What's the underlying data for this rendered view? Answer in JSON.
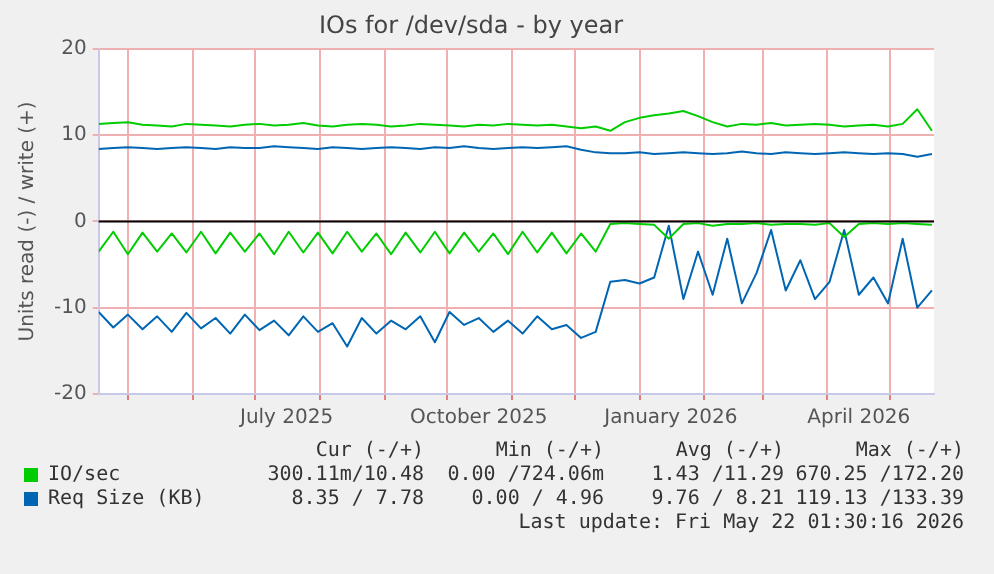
{
  "chart_data": {
    "type": "line",
    "title": "IOs for /dev/sda - by year",
    "ylabel": "Units read (-) / write (+)",
    "x": [
      "2025-04-17",
      "2025-04-24",
      "2025-05-01",
      "2025-05-08",
      "2025-05-15",
      "2025-05-22",
      "2025-05-29",
      "2025-06-05",
      "2025-06-12",
      "2025-06-19",
      "2025-06-26",
      "2025-07-03",
      "2025-07-10",
      "2025-07-17",
      "2025-07-24",
      "2025-07-31",
      "2025-08-07",
      "2025-08-14",
      "2025-08-21",
      "2025-08-28",
      "2025-09-04",
      "2025-09-11",
      "2025-09-18",
      "2025-09-25",
      "2025-10-02",
      "2025-10-09",
      "2025-10-16",
      "2025-10-23",
      "2025-10-30",
      "2025-11-06",
      "2025-11-13",
      "2025-11-20",
      "2025-11-27",
      "2025-12-04",
      "2025-12-11",
      "2025-12-18",
      "2025-12-25",
      "2026-01-01",
      "2026-01-08",
      "2026-01-15",
      "2026-01-22",
      "2026-01-29",
      "2026-02-05",
      "2026-02-12",
      "2026-02-19",
      "2026-02-26",
      "2026-03-05",
      "2026-03-12",
      "2026-03-19",
      "2026-03-26",
      "2026-04-02",
      "2026-04-09",
      "2026-04-16",
      "2026-04-23",
      "2026-04-30",
      "2026-05-07",
      "2026-05-14",
      "2026-05-21"
    ],
    "series": [
      {
        "name": "IO/sec",
        "color": "#00cc00",
        "values": [
          11.3,
          11.4,
          11.5,
          11.2,
          11.1,
          11.0,
          11.3,
          11.2,
          11.1,
          11.0,
          11.2,
          11.3,
          11.1,
          11.2,
          11.4,
          11.1,
          11.0,
          11.2,
          11.3,
          11.2,
          11.0,
          11.1,
          11.3,
          11.2,
          11.1,
          11.0,
          11.2,
          11.1,
          11.3,
          11.2,
          11.1,
          11.2,
          11.0,
          10.8,
          11.0,
          10.5,
          11.5,
          12.0,
          12.3,
          12.5,
          12.8,
          12.2,
          11.5,
          11.0,
          11.3,
          11.2,
          11.4,
          11.1,
          11.2,
          11.3,
          11.2,
          11.0,
          11.1,
          11.2,
          11.0,
          11.3,
          13.0,
          10.5
        ]
      },
      {
        "color": "#00cc00",
        "values": [
          -3.5,
          -1.2,
          -3.8,
          -1.3,
          -3.5,
          -1.4,
          -3.6,
          -1.2,
          -3.7,
          -1.3,
          -3.5,
          -1.4,
          -3.8,
          -1.2,
          -3.6,
          -1.3,
          -3.7,
          -1.2,
          -3.5,
          -1.4,
          -3.8,
          -1.3,
          -3.6,
          -1.2,
          -3.7,
          -1.3,
          -3.5,
          -1.4,
          -3.8,
          -1.2,
          -3.6,
          -1.3,
          -3.7,
          -1.4,
          -3.5,
          -0.3,
          -0.2,
          -0.3,
          -0.4,
          -2.0,
          -0.3,
          -0.2,
          -0.5,
          -0.3,
          -0.3,
          -0.2,
          -0.4,
          -0.3,
          -0.3,
          -0.4,
          -0.2,
          -1.8,
          -0.3,
          -0.2,
          -0.3,
          -0.2,
          -0.3,
          -0.4
        ]
      },
      {
        "name": "Req Size (KB)",
        "color": "#0066b3",
        "values": [
          8.4,
          8.5,
          8.6,
          8.5,
          8.4,
          8.5,
          8.6,
          8.5,
          8.4,
          8.6,
          8.5,
          8.5,
          8.7,
          8.6,
          8.5,
          8.4,
          8.6,
          8.5,
          8.4,
          8.5,
          8.6,
          8.5,
          8.4,
          8.6,
          8.5,
          8.7,
          8.5,
          8.4,
          8.5,
          8.6,
          8.5,
          8.6,
          8.7,
          8.3,
          8.0,
          7.9,
          7.9,
          8.0,
          7.8,
          7.9,
          8.0,
          7.9,
          7.8,
          7.9,
          8.1,
          7.9,
          7.8,
          8.0,
          7.9,
          7.8,
          7.9,
          8.0,
          7.9,
          7.8,
          7.9,
          7.8,
          7.5,
          7.8
        ]
      },
      {
        "color": "#0066b3",
        "values": [
          -10.5,
          -12.3,
          -10.8,
          -12.5,
          -11.0,
          -12.8,
          -10.6,
          -12.4,
          -11.2,
          -13.0,
          -10.8,
          -12.6,
          -11.5,
          -13.2,
          -11.0,
          -12.8,
          -11.8,
          -14.5,
          -11.2,
          -13.0,
          -11.5,
          -12.5,
          -11.0,
          -14.0,
          -10.5,
          -12.0,
          -11.2,
          -12.8,
          -11.5,
          -13.0,
          -11.0,
          -12.5,
          -12.0,
          -13.5,
          -12.8,
          -7.0,
          -6.8,
          -7.2,
          -6.5,
          -0.5,
          -9.0,
          -3.5,
          -8.5,
          -2.0,
          -9.5,
          -6.0,
          -1.0,
          -8.0,
          -4.5,
          -9.0,
          -7.0,
          -1.0,
          -8.5,
          -6.5,
          -9.5,
          -2.0,
          -10.0,
          -8.0
        ]
      }
    ],
    "xlim": [
      "2025-04-17",
      "2026-05-22"
    ],
    "xticks": [
      {
        "value": "2025-05-01",
        "label": null
      },
      {
        "value": "2025-06-01",
        "label": null
      },
      {
        "value": "2025-07-01",
        "label": null
      },
      {
        "value": "2025-07-16",
        "label": "July 2025"
      },
      {
        "value": "2025-08-01",
        "label": null
      },
      {
        "value": "2025-09-01",
        "label": null
      },
      {
        "value": "2025-10-01",
        "label": null
      },
      {
        "value": "2025-10-16",
        "label": "October 2025"
      },
      {
        "value": "2025-11-01",
        "label": null
      },
      {
        "value": "2025-12-01",
        "label": null
      },
      {
        "value": "2026-01-01",
        "label": null
      },
      {
        "value": "2026-01-16",
        "label": "January 2026"
      },
      {
        "value": "2026-02-01",
        "label": null
      },
      {
        "value": "2026-03-01",
        "label": null
      },
      {
        "value": "2026-04-01",
        "label": null
      },
      {
        "value": "2026-04-16",
        "label": "April 2026"
      },
      {
        "value": "2026-05-01",
        "label": null
      }
    ],
    "ylim": [
      -20,
      20
    ],
    "yticks": [
      -20,
      -10,
      0,
      10,
      20
    ],
    "grid": true,
    "legend": "bottom",
    "marker": "none",
    "line_style": "solid",
    "ref_lines": [
      {
        "axis": "y",
        "value": 0,
        "color": "#000000"
      }
    ],
    "annotations": [
      "Cur (-/+)",
      "Min (-/+)",
      "Avg (-/+)",
      "Max (-/+)",
      "300.11m/10.48",
      "0.00 /724.06m",
      "1.43 /11.29",
      "670.25 /172.20",
      "8.35 / 7.78",
      "0.00 / 4.96",
      "9.76 / 8.21",
      "119.13 /133.39",
      "Last update: Fri May 22 01:30:16 2026"
    ]
  }
}
